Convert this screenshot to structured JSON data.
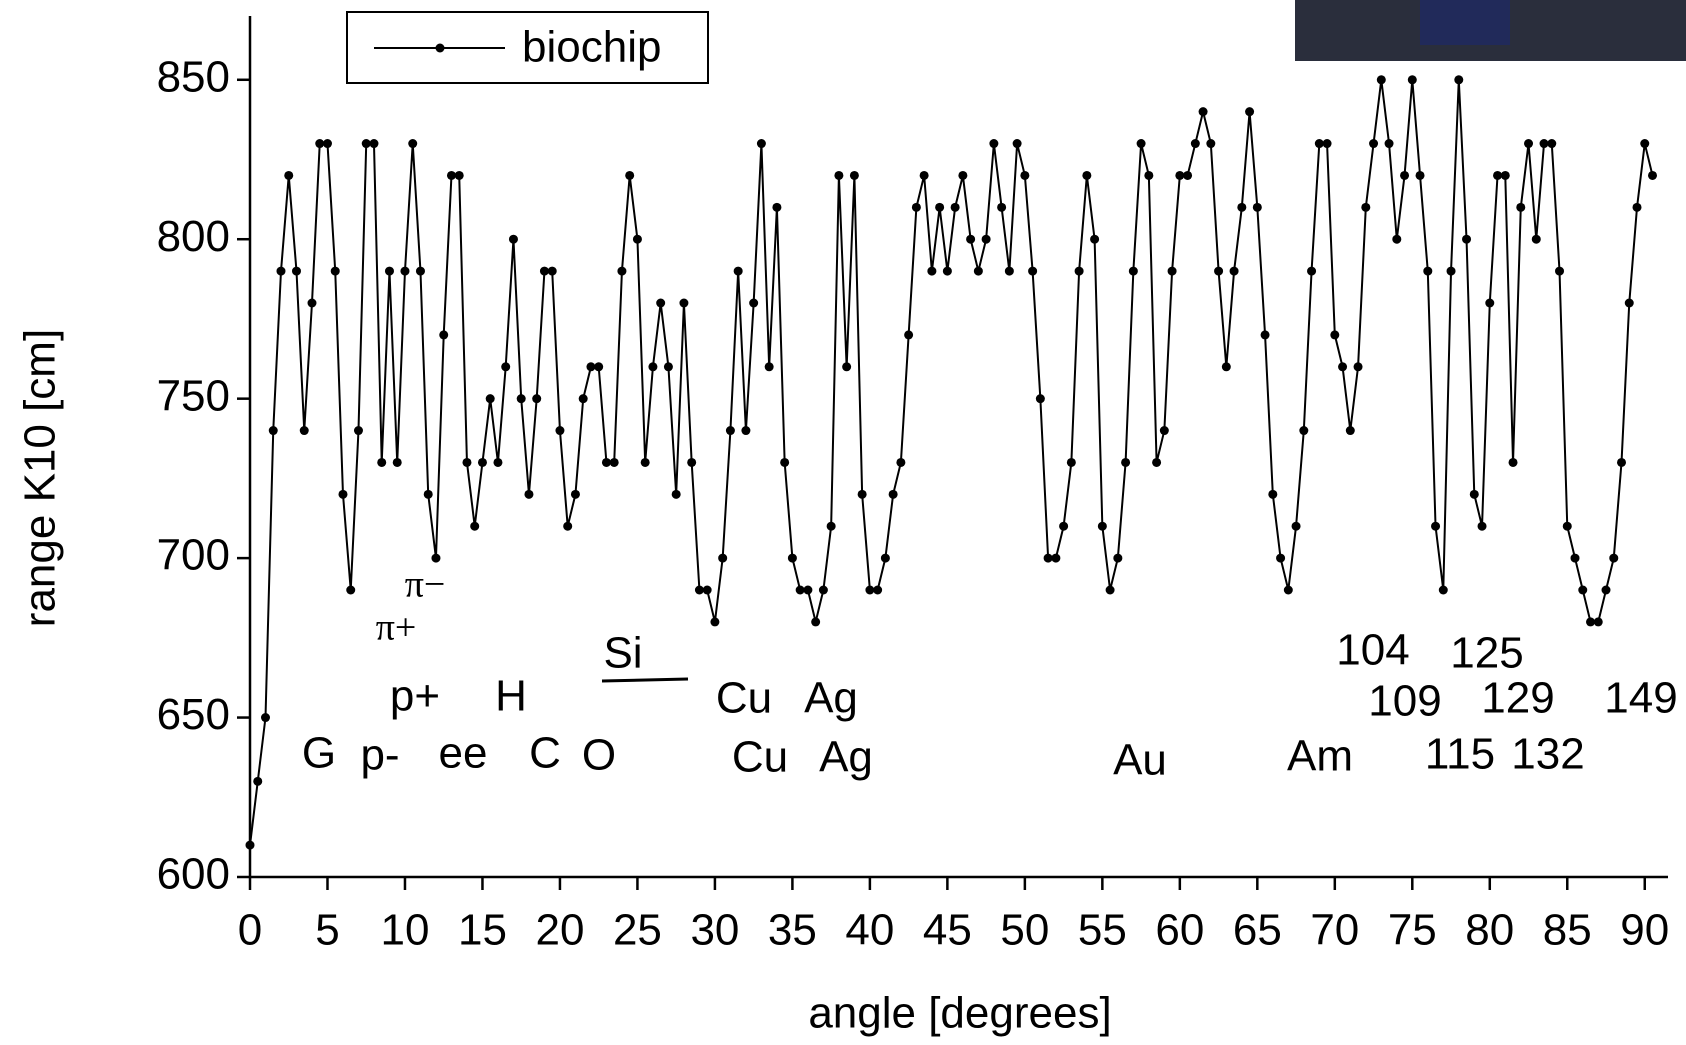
{
  "chart_data": {
    "type": "line",
    "x_label": "angle [degrees]",
    "y_label": "range K10 [cm]",
    "xlim": [
      0,
      91.5
    ],
    "xticks": [
      0,
      5,
      10,
      15,
      20,
      25,
      30,
      35,
      40,
      45,
      50,
      55,
      60,
      65,
      70,
      75,
      80,
      85,
      90
    ],
    "ylim": [
      600,
      870
    ],
    "yticks": [
      600,
      650,
      700,
      750,
      800,
      850
    ],
    "legend": "top-left",
    "x": [
      0,
      0.5,
      1,
      1.5,
      2,
      2.5,
      3,
      3.5,
      4,
      4.5,
      5,
      5.5,
      6,
      6.5,
      7,
      7.5,
      8,
      8.5,
      9,
      9.5,
      10,
      10.5,
      11,
      11.5,
      12,
      12.5,
      13,
      13.5,
      14,
      14.5,
      15,
      15.5,
      16,
      16.5,
      17,
      17.5,
      18,
      18.5,
      19,
      19.5,
      20,
      20.5,
      21,
      21.5,
      22,
      22.5,
      23,
      23.5,
      24,
      24.5,
      25,
      25.5,
      26,
      26.5,
      27,
      27.5,
      28,
      28.5,
      29,
      29.5,
      30,
      30.5,
      31,
      31.5,
      32,
      32.5,
      33,
      33.5,
      34,
      34.5,
      35,
      35.5,
      36,
      36.5,
      37,
      37.5,
      38,
      38.5,
      39,
      39.5,
      40,
      40.5,
      41,
      41.5,
      42,
      42.5,
      43,
      43.5,
      44,
      44.5,
      45,
      45.5,
      46,
      46.5,
      47,
      47.5,
      48,
      48.5,
      49,
      49.5,
      50,
      50.5,
      51,
      51.5,
      52,
      52.5,
      53,
      53.5,
      54,
      54.5,
      55,
      55.5,
      56,
      56.5,
      57,
      57.5,
      58,
      58.5,
      59,
      59.5,
      60,
      60.5,
      61,
      61.5,
      62,
      62.5,
      63,
      63.5,
      64,
      64.5,
      65,
      65.5,
      66,
      66.5,
      67,
      67.5,
      68,
      68.5,
      69,
      69.5,
      70,
      70.5,
      71,
      71.5,
      72,
      72.5,
      73,
      73.5,
      74,
      74.5,
      75,
      75.5,
      76,
      76.5,
      77,
      77.5,
      78,
      78.5,
      79,
      79.5,
      80,
      80.5,
      81,
      81.5,
      82,
      82.5,
      83,
      83.5,
      84,
      84.5,
      85,
      85.5,
      86,
      86.5,
      87,
      87.5,
      88,
      88.5,
      89,
      89.5,
      90,
      90.5
    ],
    "series": [
      {
        "name": "biochip",
        "color": "#000000",
        "values": [
          610,
          630,
          650,
          740,
          790,
          820,
          790,
          740,
          780,
          830,
          830,
          790,
          720,
          690,
          740,
          830,
          830,
          730,
          790,
          730,
          790,
          830,
          790,
          720,
          700,
          770,
          820,
          820,
          730,
          710,
          730,
          750,
          730,
          760,
          800,
          750,
          720,
          750,
          790,
          790,
          740,
          710,
          720,
          750,
          760,
          760,
          730,
          730,
          790,
          820,
          800,
          730,
          760,
          780,
          760,
          720,
          780,
          730,
          690,
          690,
          680,
          700,
          740,
          790,
          740,
          780,
          830,
          760,
          810,
          730,
          700,
          690,
          690,
          680,
          690,
          710,
          820,
          760,
          820,
          720,
          690,
          690,
          700,
          720,
          730,
          770,
          810,
          820,
          790,
          810,
          790,
          810,
          820,
          800,
          790,
          800,
          830,
          810,
          790,
          830,
          820,
          790,
          750,
          700,
          700,
          710,
          730,
          790,
          820,
          800,
          710,
          690,
          700,
          730,
          790,
          830,
          820,
          730,
          740,
          790,
          820,
          820,
          830,
          840,
          830,
          790,
          760,
          790,
          810,
          840,
          810,
          770,
          720,
          700,
          690,
          710,
          740,
          790,
          830,
          830,
          770,
          760,
          740,
          760,
          810,
          830,
          850,
          830,
          800,
          820,
          850,
          820,
          790,
          710,
          690,
          790,
          850,
          800,
          720,
          710,
          780,
          820,
          820,
          730,
          810,
          830,
          800,
          830,
          830,
          790,
          710,
          700,
          690,
          680,
          680,
          690,
          700,
          730,
          780,
          810,
          830,
          820
        ]
      }
    ],
    "annotations": [
      "G",
      "p-",
      "p+",
      "π+",
      "π−",
      "ee",
      "H",
      "C",
      "O",
      "Si",
      "Cu",
      "Cu",
      "Ag",
      "Ag",
      "Au",
      "Am",
      "104",
      "109",
      "115",
      "125",
      "129",
      "132",
      "149"
    ]
  }
}
